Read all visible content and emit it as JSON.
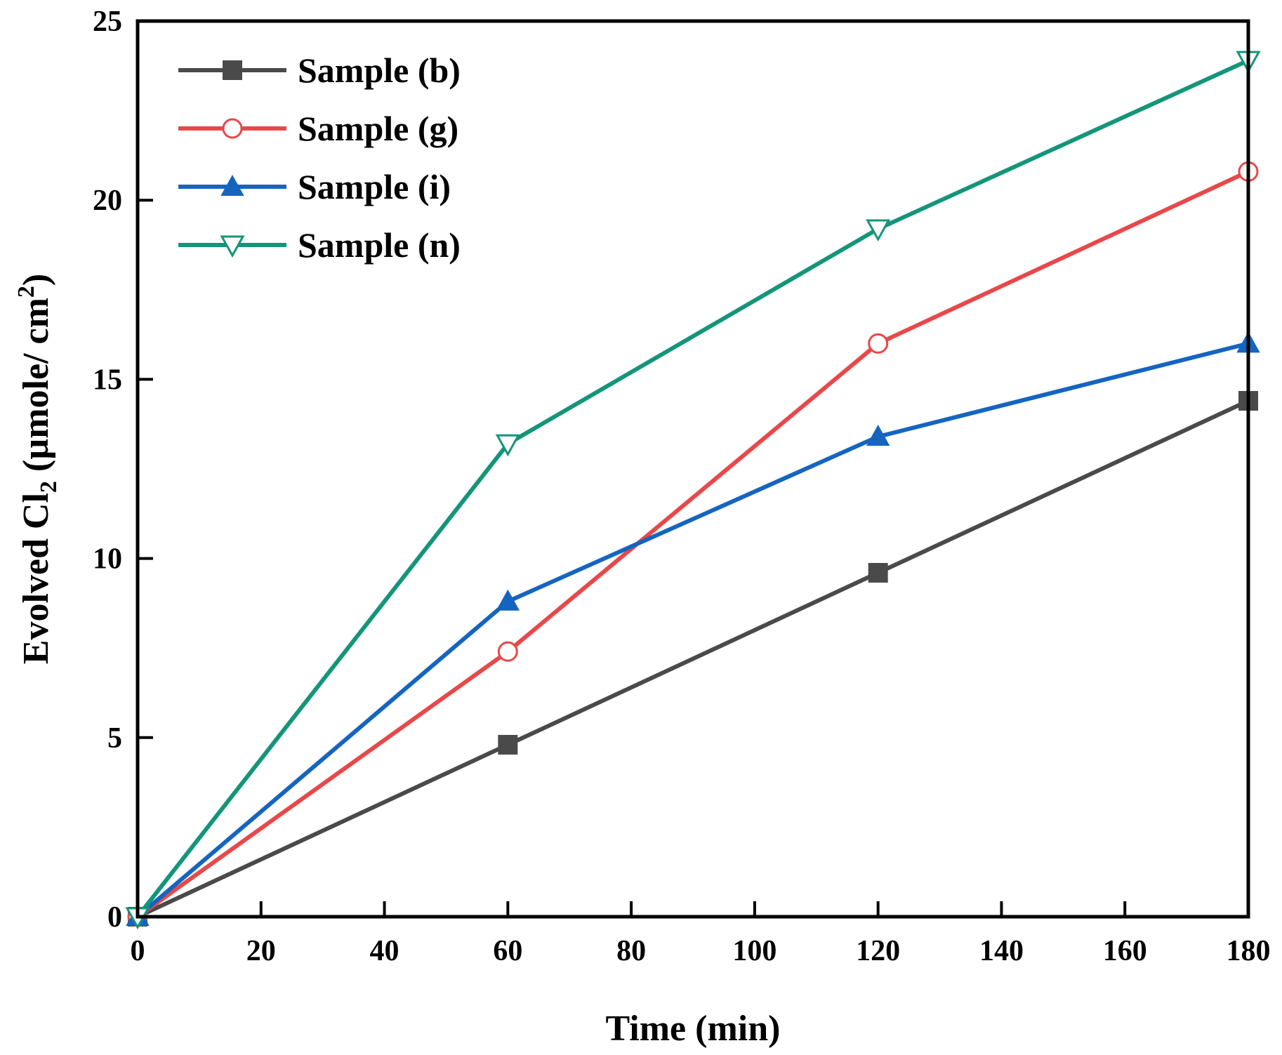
{
  "chart_data": {
    "type": "line",
    "xlabel": "Time (min)",
    "ylabel": {
      "prefix": "Evolved Cl",
      "sub": "2",
      "middle": " (µmole/ cm",
      "sup": "2",
      "suffix": ")"
    },
    "xlim": [
      0,
      180
    ],
    "ylim": [
      0,
      25
    ],
    "xticks": [
      0,
      20,
      40,
      60,
      80,
      100,
      120,
      140,
      160,
      180
    ],
    "yticks": [
      0,
      5,
      10,
      15,
      20,
      25
    ],
    "legend_position": "top-left",
    "grid": false,
    "x": [
      0,
      60,
      120,
      180
    ],
    "series": [
      {
        "name": "Sample (b)",
        "color": "#4a4a4a",
        "marker": "square-filled",
        "values": [
          0,
          4.8,
          9.6,
          14.4
        ]
      },
      {
        "name": "Sample (g)",
        "color": "#e8484a",
        "marker": "circle-open",
        "values": [
          0,
          7.4,
          16.0,
          20.8
        ]
      },
      {
        "name": "Sample (i)",
        "color": "#1565c0",
        "marker": "triangle-up-filled",
        "values": [
          0,
          8.8,
          13.4,
          16.0
        ]
      },
      {
        "name": "Sample (n)",
        "color": "#14957a",
        "marker": "triangle-down-open",
        "values": [
          0,
          13.2,
          19.2,
          23.9
        ]
      }
    ]
  }
}
